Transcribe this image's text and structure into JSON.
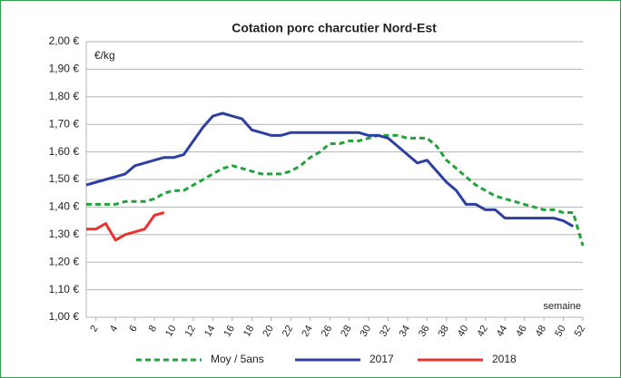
{
  "chart_data": {
    "type": "line",
    "title": "Cotation porc charcutier Nord-Est",
    "y_unit": "€/kg",
    "xlabel": "semaine",
    "x": [
      1,
      2,
      3,
      4,
      5,
      6,
      7,
      8,
      9,
      10,
      11,
      12,
      13,
      14,
      15,
      16,
      17,
      18,
      19,
      20,
      21,
      22,
      23,
      24,
      25,
      26,
      27,
      28,
      29,
      30,
      31,
      32,
      33,
      34,
      35,
      36,
      37,
      38,
      39,
      40,
      41,
      42,
      43,
      44,
      45,
      46,
      47,
      48,
      49,
      50,
      51,
      52
    ],
    "xlim": [
      1,
      52
    ],
    "xticks": [
      2,
      4,
      6,
      8,
      10,
      12,
      14,
      16,
      18,
      20,
      22,
      24,
      26,
      28,
      30,
      32,
      34,
      36,
      38,
      40,
      42,
      44,
      46,
      48,
      50,
      52
    ],
    "ylim": [
      1.0,
      2.0
    ],
    "yticks": [
      {
        "value": 1.0,
        "label": "1,00 €"
      },
      {
        "value": 1.1,
        "label": "1,10 €"
      },
      {
        "value": 1.2,
        "label": "1,20 €"
      },
      {
        "value": 1.3,
        "label": "1,30 €"
      },
      {
        "value": 1.4,
        "label": "1,40 €"
      },
      {
        "value": 1.5,
        "label": "1,50 €"
      },
      {
        "value": 1.6,
        "label": "1,60 €"
      },
      {
        "value": 1.7,
        "label": "1,70 €"
      },
      {
        "value": 1.8,
        "label": "1,80 €"
      },
      {
        "value": 1.9,
        "label": "1,90 €"
      },
      {
        "value": 2.0,
        "label": "2,00 €"
      }
    ],
    "grid": true,
    "legend": "bottom",
    "series": [
      {
        "name": "Moy / 5ans",
        "color": "#22a33a",
        "style": "dashed",
        "values": [
          1.41,
          1.41,
          1.41,
          1.41,
          1.42,
          1.42,
          1.42,
          1.43,
          1.45,
          1.46,
          1.46,
          1.48,
          1.5,
          1.52,
          1.54,
          1.55,
          1.54,
          1.53,
          1.52,
          1.52,
          1.52,
          1.53,
          1.55,
          1.58,
          1.6,
          1.63,
          1.63,
          1.64,
          1.64,
          1.65,
          1.66,
          1.66,
          1.66,
          1.65,
          1.65,
          1.65,
          1.62,
          1.57,
          1.54,
          1.51,
          1.48,
          1.46,
          1.44,
          1.43,
          1.42,
          1.41,
          1.4,
          1.39,
          1.39,
          1.38,
          1.38,
          1.26
        ]
      },
      {
        "name": "2017",
        "color": "#2d3fa0",
        "style": "solid",
        "values": [
          1.48,
          1.49,
          1.5,
          1.51,
          1.52,
          1.55,
          1.56,
          1.57,
          1.58,
          1.58,
          1.59,
          1.64,
          1.69,
          1.73,
          1.74,
          1.73,
          1.72,
          1.68,
          1.67,
          1.66,
          1.66,
          1.67,
          1.67,
          1.67,
          1.67,
          1.67,
          1.67,
          1.67,
          1.67,
          1.66,
          1.66,
          1.65,
          1.62,
          1.59,
          1.56,
          1.57,
          1.53,
          1.49,
          1.46,
          1.41,
          1.41,
          1.39,
          1.39,
          1.36,
          1.36,
          1.36,
          1.36,
          1.36,
          1.36,
          1.35,
          1.33,
          null
        ]
      },
      {
        "name": "2018",
        "color": "#e8332f",
        "style": "solid",
        "values": [
          1.32,
          1.32,
          1.34,
          1.28,
          1.3,
          1.31,
          1.32,
          1.37,
          1.38,
          null,
          null,
          null,
          null,
          null,
          null,
          null,
          null,
          null,
          null,
          null,
          null,
          null,
          null,
          null,
          null,
          null,
          null,
          null,
          null,
          null,
          null,
          null,
          null,
          null,
          null,
          null,
          null,
          null,
          null,
          null,
          null,
          null,
          null,
          null,
          null,
          null,
          null,
          null,
          null,
          null,
          null,
          null
        ]
      }
    ]
  }
}
